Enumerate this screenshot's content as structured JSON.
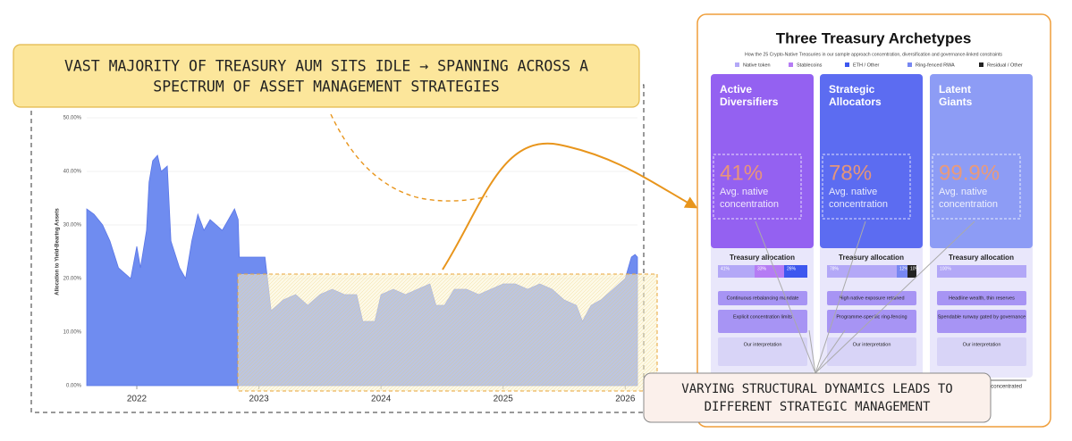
{
  "chart_data": {
    "type": "area",
    "ylabel": "Allocation to Yield-Bearing Assets",
    "color": "#6f8cf0",
    "xlim": [
      2021.59,
      2026.1
    ],
    "xticks": [
      2022,
      2023,
      2024,
      2025,
      2026
    ],
    "ylim": [
      0,
      50
    ],
    "yticks": [
      {
        "value": 0,
        "label": "0.00%"
      },
      {
        "value": 10,
        "label": "10.00%"
      },
      {
        "value": 20,
        "label": "20.00%"
      },
      {
        "value": 30,
        "label": "30.00%"
      },
      {
        "value": 40,
        "label": "40.00%"
      },
      {
        "value": 50,
        "label": "50.00%"
      }
    ],
    "x": [
      2021.59,
      2021.65,
      2021.72,
      2021.78,
      2021.85,
      2021.9,
      2021.95,
      2022.0,
      2022.03,
      2022.08,
      2022.1,
      2022.13,
      2022.17,
      2022.2,
      2022.25,
      2022.28,
      2022.35,
      2022.4,
      2022.45,
      2022.5,
      2022.55,
      2022.6,
      2022.7,
      2022.8,
      2022.83,
      2022.84,
      2023.0,
      2023.05,
      2023.1,
      2023.2,
      2023.3,
      2023.4,
      2023.5,
      2023.6,
      2023.7,
      2023.8,
      2023.85,
      2023.95,
      2024.0,
      2024.1,
      2024.2,
      2024.3,
      2024.4,
      2024.45,
      2024.52,
      2024.6,
      2024.7,
      2024.8,
      2024.9,
      2025.0,
      2025.1,
      2025.2,
      2025.3,
      2025.4,
      2025.5,
      2025.6,
      2025.65,
      2025.72,
      2025.8,
      2025.9,
      2026.0,
      2026.05,
      2026.08,
      2026.1
    ],
    "values": [
      33,
      32,
      30,
      27,
      22,
      21,
      20,
      26,
      22,
      29,
      38,
      42,
      43,
      40,
      41,
      27,
      22,
      20,
      27,
      32,
      29,
      31,
      29,
      33,
      31,
      24,
      24,
      24,
      14,
      16,
      17,
      15,
      17,
      18,
      17,
      17,
      12,
      12,
      17,
      18,
      17,
      18,
      19,
      15,
      15,
      18,
      18,
      17,
      18,
      19,
      19,
      18,
      19,
      18,
      16,
      15,
      12,
      15,
      16,
      18,
      20,
      24,
      24.5,
      24
    ]
  },
  "callouts": {
    "top": [
      "VAST MAJORITY OF TREASURY AUM SITS IDLE → SPANNING ACROSS A",
      "SPECTRUM OF ASSET MANAGEMENT STRATEGIES"
    ],
    "bottom": [
      "VARYING STRUCTURAL DYNAMICS LEADS TO",
      "DIFFERENT STRATEGIC MANAGEMENT"
    ]
  },
  "panel": {
    "title": "Three Treasury Archetypes",
    "subtitle": "How the 25 Crypto-Native Treasuries in our sample approach concentration, diversification and governance-linked constraints",
    "legend": [
      {
        "label": "Native token",
        "color": "#b3a8f7"
      },
      {
        "label": "Stablecoins",
        "color": "#b57cf4"
      },
      {
        "label": "ETH / Other",
        "color": "#3d57ef"
      },
      {
        "label": "Ring-fenced RWA",
        "color": "#7787f2"
      },
      {
        "label": "Residual / Other",
        "color": "#222222"
      }
    ],
    "axis_end": "concentrated",
    "cards": [
      {
        "name": [
          "Active",
          "Diversifiers"
        ],
        "color": "#9461f1",
        "stat": "41%",
        "caption": [
          "Avg. native",
          "concentration"
        ],
        "allocation_title": "Treasury allocation",
        "allocation": [
          {
            "value": 41,
            "label": "41%",
            "color": "#b3a8f7"
          },
          {
            "value": 33,
            "label": "33%",
            "color": "#b57cf4"
          },
          {
            "value": 26,
            "label": "26%",
            "color": "#3d57ef"
          }
        ],
        "items": [
          "Continuous rebalancing mandate",
          "Explicit concentration limits",
          "Our interpretation"
        ]
      },
      {
        "name": [
          "Strategic",
          "Allocators"
        ],
        "color": "#5c6cf1",
        "stat": "78%",
        "caption": [
          "Avg. native",
          "concentration"
        ],
        "allocation_title": "Treasury allocation",
        "allocation": [
          {
            "value": 78,
            "label": "78%",
            "color": "#b3a8f7"
          },
          {
            "value": 12,
            "label": "12%",
            "color": "#7787f2"
          },
          {
            "value": 10,
            "label": "10%",
            "color": "#222222"
          }
        ],
        "items": [
          "High native exposure retained",
          "Programme-specific ring-fencing",
          "Our interpretation"
        ]
      },
      {
        "name": [
          "Latent",
          "Giants"
        ],
        "color": "#8d9cf5",
        "stat": "99.9%",
        "caption": [
          "Avg. native",
          "concentration"
        ],
        "allocation_title": "Treasury allocation",
        "allocation": [
          {
            "value": 100,
            "label": "100%",
            "color": "#b3a8f7"
          }
        ],
        "items": [
          "Headline wealth, thin reserves",
          "Spendable runway gated by governance",
          "Our interpretation"
        ]
      }
    ]
  }
}
